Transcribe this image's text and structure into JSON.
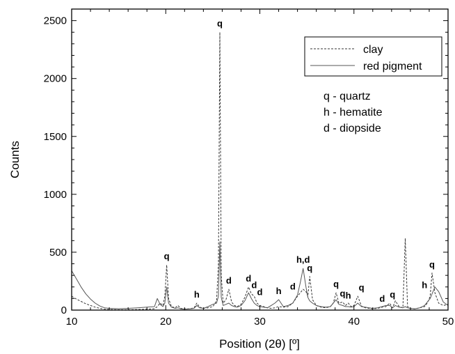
{
  "chart_data": {
    "type": "line",
    "title": "",
    "xlabel": "Position (2θ) [º]",
    "ylabel": "Counts",
    "xlim": [
      10,
      50
    ],
    "ylim": [
      0,
      2600
    ],
    "x_ticks": [
      10,
      20,
      30,
      40,
      50
    ],
    "y_ticks": [
      0,
      500,
      1000,
      1500,
      2000,
      2500
    ],
    "grid": false,
    "legend_position": "top-right",
    "series": [
      {
        "name": "clay",
        "style": "dashed",
        "color": "#333333",
        "x": [
          10,
          10.5,
          11,
          11.5,
          12,
          12.5,
          13,
          13.5,
          14,
          15,
          16,
          17,
          18,
          18.8,
          19.1,
          19.4,
          19.7,
          19.9,
          20.1,
          20.3,
          20.6,
          21,
          21.3,
          21.6,
          22,
          22.5,
          23,
          23.3,
          23.6,
          24,
          24.5,
          25,
          25.4,
          25.6,
          25.75,
          25.9,
          26.1,
          26.4,
          26.7,
          27,
          27.3,
          27.6,
          28,
          28.4,
          28.8,
          29.1,
          29.4,
          29.7,
          30,
          30.4,
          30.8,
          31.2,
          31.6,
          32,
          32.5,
          33,
          33.5,
          34,
          34.3,
          34.6,
          34.9,
          35.1,
          35.3,
          35.6,
          36,
          36.5,
          37,
          37.5,
          37.8,
          38.1,
          38.4,
          38.8,
          39.1,
          39.4,
          39.7,
          40,
          40.4,
          40.8,
          41.2,
          41.6,
          42,
          42.5,
          43,
          43.4,
          43.8,
          44.1,
          44.4,
          44.8,
          45.2,
          45.45,
          45.7,
          46,
          46.5,
          47,
          47.5,
          47.8,
          48.1,
          48.3,
          48.6,
          49,
          49.5,
          50
        ],
        "y": [
          120,
          95,
          75,
          55,
          40,
          25,
          15,
          8,
          5,
          3,
          3,
          5,
          8,
          12,
          30,
          60,
          40,
          120,
          390,
          100,
          30,
          20,
          40,
          15,
          10,
          12,
          18,
          60,
          25,
          15,
          20,
          30,
          80,
          400,
          2400,
          300,
          60,
          90,
          180,
          70,
          40,
          30,
          50,
          110,
          200,
          140,
          120,
          60,
          40,
          30,
          20,
          15,
          20,
          30,
          25,
          30,
          60,
          120,
          150,
          180,
          160,
          120,
          290,
          90,
          40,
          25,
          20,
          30,
          60,
          150,
          60,
          70,
          40,
          60,
          30,
          40,
          120,
          35,
          20,
          15,
          10,
          15,
          25,
          30,
          60,
          20,
          80,
          30,
          20,
          620,
          30,
          15,
          10,
          20,
          30,
          60,
          120,
          320,
          150,
          60,
          40,
          50
        ]
      },
      {
        "name": "red pigment",
        "style": "solid",
        "color": "#555555",
        "x": [
          10,
          10.5,
          11,
          11.5,
          12,
          12.5,
          13,
          13.5,
          14,
          15,
          16,
          17,
          18,
          18.8,
          19.1,
          19.4,
          19.7,
          19.9,
          20.1,
          20.3,
          20.6,
          21,
          21.3,
          21.6,
          22,
          22.5,
          23,
          23.3,
          23.6,
          24,
          24.5,
          25,
          25.4,
          25.6,
          25.75,
          25.9,
          26.1,
          26.4,
          26.7,
          27,
          27.3,
          27.6,
          28,
          28.4,
          28.8,
          29.1,
          29.4,
          29.7,
          30,
          30.4,
          30.8,
          31.2,
          31.6,
          32,
          32.5,
          33,
          33.5,
          34,
          34.3,
          34.6,
          34.9,
          35.1,
          35.3,
          35.6,
          36,
          36.5,
          37,
          37.5,
          37.8,
          38.1,
          38.4,
          38.8,
          39.1,
          39.4,
          39.7,
          40,
          40.4,
          40.8,
          41.2,
          41.6,
          42,
          42.5,
          43,
          43.4,
          43.8,
          44.1,
          44.4,
          44.8,
          45.2,
          45.45,
          45.7,
          46,
          46.5,
          47,
          47.5,
          47.8,
          48.1,
          48.3,
          48.6,
          49,
          49.5,
          50
        ],
        "y": [
          340,
          270,
          200,
          140,
          95,
          60,
          35,
          20,
          15,
          12,
          15,
          20,
          25,
          30,
          100,
          50,
          30,
          60,
          200,
          60,
          25,
          15,
          20,
          10,
          8,
          10,
          15,
          40,
          20,
          15,
          30,
          50,
          60,
          120,
          590,
          110,
          40,
          50,
          60,
          40,
          30,
          25,
          40,
          80,
          150,
          100,
          60,
          40,
          30,
          25,
          20,
          40,
          60,
          90,
          30,
          40,
          60,
          130,
          240,
          360,
          200,
          110,
          80,
          60,
          40,
          30,
          25,
          30,
          60,
          90,
          50,
          40,
          30,
          30,
          25,
          30,
          60,
          30,
          25,
          20,
          15,
          20,
          30,
          40,
          40,
          20,
          40,
          25,
          20,
          30,
          20,
          15,
          12,
          20,
          40,
          70,
          100,
          140,
          200,
          160,
          70,
          40
        ]
      }
    ],
    "annotations": [
      {
        "text": "q",
        "x": 20.1,
        "y": 390
      },
      {
        "text": "q",
        "x": 25.75,
        "y": 2400
      },
      {
        "text": "h",
        "x": 23.3,
        "y": 60
      },
      {
        "text": "d",
        "x": 26.7,
        "y": 180
      },
      {
        "text": "d",
        "x": 28.8,
        "y": 200
      },
      {
        "text": "d",
        "x": 29.4,
        "y": 140
      },
      {
        "text": "d",
        "x": 30.0,
        "y": 80
      },
      {
        "text": "h",
        "x": 32.0,
        "y": 90
      },
      {
        "text": "d",
        "x": 33.5,
        "y": 130
      },
      {
        "text": "h,d",
        "x": 34.6,
        "y": 360
      },
      {
        "text": "q",
        "x": 35.3,
        "y": 290
      },
      {
        "text": "q",
        "x": 38.1,
        "y": 150
      },
      {
        "text": "q",
        "x": 38.8,
        "y": 70
      },
      {
        "text": "h",
        "x": 39.4,
        "y": 50
      },
      {
        "text": "q",
        "x": 40.8,
        "y": 120
      },
      {
        "text": "d",
        "x": 43.0,
        "y": 25
      },
      {
        "text": "q",
        "x": 44.1,
        "y": 60
      },
      {
        "text": "h",
        "x": 47.5,
        "y": 140
      },
      {
        "text": "q",
        "x": 48.3,
        "y": 320
      }
    ],
    "key": [
      "q - quartz",
      "h - hematite",
      "d - diopside"
    ]
  }
}
